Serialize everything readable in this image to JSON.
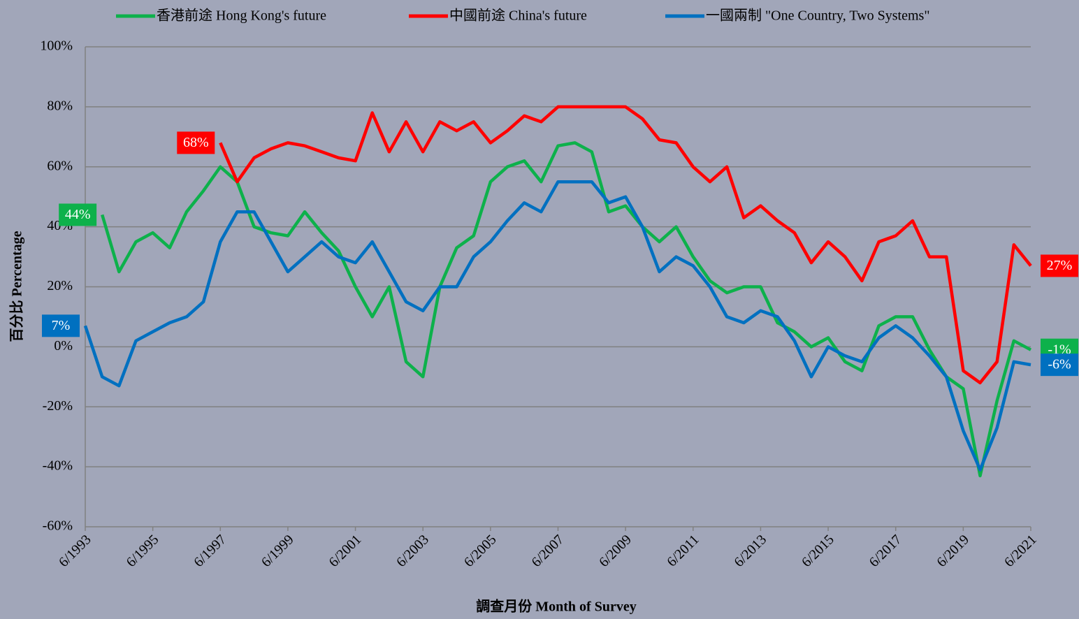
{
  "chart_data": {
    "type": "line",
    "x_label": "調查月份 Month of Survey",
    "y_label": "百分比 Percentage",
    "x": [
      "6/1993",
      "12/1993",
      "6/1994",
      "12/1994",
      "6/1995",
      "12/1995",
      "6/1996",
      "12/1996",
      "6/1997",
      "12/1997",
      "6/1998",
      "12/1998",
      "6/1999",
      "12/1999",
      "6/2000",
      "12/2000",
      "6/2001",
      "12/2001",
      "6/2002",
      "12/2002",
      "6/2003",
      "12/2003",
      "6/2004",
      "12/2004",
      "6/2005",
      "12/2005",
      "6/2006",
      "12/2006",
      "6/2007",
      "12/2007",
      "6/2008",
      "12/2008",
      "6/2009",
      "12/2009",
      "6/2010",
      "12/2010",
      "6/2011",
      "12/2011",
      "6/2012",
      "12/2012",
      "6/2013",
      "12/2013",
      "6/2014",
      "12/2014",
      "6/2015",
      "12/2015",
      "6/2016",
      "12/2016",
      "6/2017",
      "12/2017",
      "6/2018",
      "12/2018",
      "6/2019",
      "12/2019",
      "6/2020",
      "12/2020",
      "6/2021"
    ],
    "series": [
      {
        "name": "香港前途 Hong Kong's future",
        "color": "#0db14b",
        "values": [
          null,
          44,
          25,
          35,
          38,
          33,
          45,
          52,
          60,
          55,
          40,
          38,
          37,
          45,
          38,
          32,
          20,
          10,
          20,
          -5,
          -10,
          20,
          33,
          37,
          55,
          60,
          62,
          55,
          67,
          68,
          65,
          45,
          47,
          40,
          35,
          40,
          30,
          22,
          18,
          20,
          20,
          8,
          5,
          0,
          3,
          -5,
          -8,
          7,
          10,
          10,
          -1,
          -10,
          -14,
          -43,
          -18,
          2,
          -1
        ],
        "value_labels": [
          null,
          "44%",
          null,
          null,
          null,
          null,
          null,
          null,
          null,
          null,
          null,
          null,
          null,
          null,
          null,
          null,
          null,
          null,
          null,
          null,
          null,
          null,
          null,
          null,
          null,
          null,
          null,
          null,
          null,
          null,
          null,
          null,
          null,
          null,
          null,
          null,
          null,
          null,
          null,
          null,
          null,
          null,
          null,
          null,
          null,
          null,
          null,
          null,
          null,
          null,
          null,
          null,
          null,
          null,
          null,
          null,
          "-1%"
        ]
      },
      {
        "name": "中國前途 China's future",
        "color": "#ff0000",
        "values": [
          null,
          null,
          null,
          null,
          null,
          null,
          null,
          null,
          68,
          55,
          63,
          66,
          68,
          67,
          65,
          63,
          62,
          78,
          65,
          75,
          65,
          75,
          72,
          75,
          68,
          72,
          77,
          75,
          80,
          80,
          80,
          80,
          80,
          76,
          69,
          68,
          60,
          55,
          60,
          43,
          47,
          42,
          38,
          28,
          35,
          30,
          22,
          35,
          37,
          42,
          30,
          30,
          -8,
          -12,
          -5,
          34,
          27
        ],
        "value_labels": [
          null,
          null,
          null,
          null,
          null,
          null,
          null,
          null,
          "68%",
          null,
          null,
          null,
          null,
          null,
          null,
          null,
          null,
          null,
          null,
          null,
          null,
          null,
          null,
          null,
          null,
          null,
          null,
          null,
          null,
          null,
          null,
          null,
          null,
          null,
          null,
          null,
          null,
          null,
          null,
          null,
          null,
          null,
          null,
          null,
          null,
          null,
          null,
          null,
          null,
          null,
          null,
          null,
          null,
          null,
          null,
          null,
          "27%"
        ]
      },
      {
        "name": "一國兩制 \"One Country, Two Systems\"",
        "color": "#0070c0",
        "values": [
          7,
          -10,
          -13,
          2,
          5,
          8,
          10,
          15,
          35,
          45,
          45,
          35,
          25,
          30,
          35,
          30,
          28,
          35,
          25,
          15,
          12,
          20,
          20,
          30,
          35,
          42,
          48,
          45,
          55,
          55,
          55,
          48,
          50,
          40,
          25,
          30,
          27,
          20,
          10,
          8,
          12,
          10,
          2,
          -10,
          0,
          -3,
          -5,
          3,
          7,
          3,
          -3,
          -10,
          -28,
          -41,
          -27,
          -5,
          -6
        ],
        "value_labels": [
          "7%",
          null,
          null,
          null,
          null,
          null,
          null,
          null,
          null,
          null,
          null,
          null,
          null,
          null,
          null,
          null,
          null,
          null,
          null,
          null,
          null,
          null,
          null,
          null,
          null,
          null,
          null,
          null,
          null,
          null,
          null,
          null,
          null,
          null,
          null,
          null,
          null,
          null,
          null,
          null,
          null,
          null,
          null,
          null,
          null,
          null,
          null,
          null,
          null,
          null,
          null,
          null,
          null,
          null,
          null,
          null,
          "-6%"
        ]
      }
    ],
    "xlim": [
      "6/1993",
      "6/2021"
    ],
    "xticks": [
      "6/1993",
      "6/1995",
      "6/1997",
      "6/1999",
      "6/2001",
      "6/2003",
      "6/2005",
      "6/2007",
      "6/2009",
      "6/2011",
      "6/2013",
      "6/2015",
      "6/2017",
      "6/2019",
      "6/2021"
    ],
    "ylim": [
      -60,
      100
    ],
    "yticks": [
      {
        "value": -60,
        "label": "-60%"
      },
      {
        "value": -40,
        "label": "-40%"
      },
      {
        "value": -20,
        "label": "-20%"
      },
      {
        "value": 0,
        "label": "0%"
      },
      {
        "value": 20,
        "label": "20%"
      },
      {
        "value": 40,
        "label": "40%"
      },
      {
        "value": 60,
        "label": "60%"
      },
      {
        "value": 80,
        "label": "80%"
      },
      {
        "value": 100,
        "label": "100%"
      }
    ],
    "grid": true,
    "legend": "top"
  }
}
